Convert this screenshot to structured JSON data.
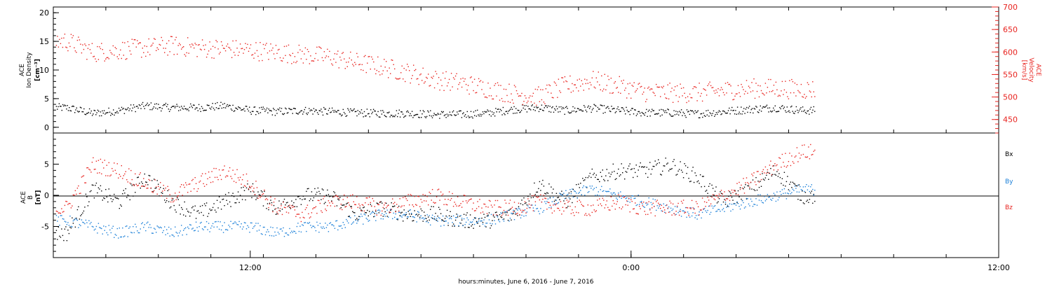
{
  "colors": {
    "axis": "#000000",
    "red": "#e8231f",
    "blue": "#1a7fd8",
    "black": "#000000"
  },
  "chart_data": [
    {
      "type": "scatter",
      "panel": "top",
      "ylabel_left": [
        "ACE",
        "Ion Density",
        "[cm⁻³]"
      ],
      "ylabel_right": [
        "ACE",
        "Velocity",
        "[km/s]"
      ],
      "xlim_hours": [
        2,
        38
      ],
      "ylim_left": [
        -1,
        21
      ],
      "ylim_right": [
        420,
        700
      ],
      "yticks_left": [
        0,
        5,
        10,
        15,
        20
      ],
      "yticks_right": [
        450,
        500,
        550,
        600,
        650,
        700
      ],
      "grid": false,
      "series": [
        {
          "color": "black",
          "axis": "left",
          "x": [
            2.5,
            3.5,
            4.5,
            5.5,
            6.5,
            7.5,
            8.5,
            9.5,
            10.5,
            11.5,
            12.5,
            13.5,
            14.5,
            15.5,
            16.5,
            17.5,
            18.5,
            19.5,
            20.5,
            21.5,
            22.5,
            23.5,
            24.5,
            25.5,
            26.5,
            27.5,
            28.5,
            29.5,
            30.5
          ],
          "y": [
            3.5,
            2.5,
            3.0,
            3.8,
            3.5,
            3.5,
            3.8,
            3.0,
            2.8,
            3.0,
            2.8,
            2.6,
            2.5,
            2.5,
            2.3,
            2.3,
            2.5,
            3.2,
            3.5,
            3.0,
            3.4,
            3.0,
            2.6,
            2.6,
            2.4,
            2.8,
            3.2,
            3.5,
            3.0
          ]
        },
        {
          "color": "red",
          "axis": "right",
          "x": [
            2.5,
            3.5,
            4.5,
            5.5,
            6.5,
            7.5,
            8.5,
            9.5,
            10.5,
            11.5,
            12.5,
            13.5,
            14.5,
            15.5,
            16.5,
            17.5,
            18.5,
            19.5,
            20.5,
            21.5,
            22.5,
            23.5,
            24.5,
            25.5,
            26.5,
            27.5,
            28.5,
            29.5,
            30.5
          ],
          "y": [
            625,
            600,
            605,
            610,
            615,
            610,
            608,
            605,
            600,
            595,
            590,
            578,
            568,
            555,
            540,
            532,
            520,
            508,
            502,
            526,
            538,
            525,
            512,
            510,
            510,
            515,
            520,
            520,
            518
          ]
        }
      ]
    },
    {
      "type": "scatter",
      "panel": "bottom",
      "ylabel_left": [
        "ACE",
        "B",
        "[nT]"
      ],
      "xlim_hours": [
        2,
        38
      ],
      "ylim": [
        -10,
        10
      ],
      "yticks": [
        -5,
        0,
        5
      ],
      "zero_line": true,
      "xticks_labels": [
        "12:00",
        "0:00",
        "12:00"
      ],
      "xticks_hours": [
        9.5,
        24,
        38
      ],
      "xlabel": "hours:minutes, June  6, 2016 - June  7, 2016",
      "legend": [
        "Bx",
        "By",
        "Bz"
      ],
      "legend_placement": "right",
      "series": [
        {
          "name": "Bx",
          "color": "black",
          "x": [
            2.5,
            3.5,
            4.5,
            5.5,
            6.5,
            7.5,
            8.5,
            9.5,
            10.5,
            11.5,
            12.5,
            13.5,
            14.5,
            15.5,
            16.5,
            17.5,
            18.5,
            19.5,
            20.5,
            21.5,
            22.5,
            23.5,
            24.5,
            25.5,
            26.5,
            27.5,
            28.5,
            29.5,
            30.5
          ],
          "y": [
            -6,
            1,
            -1,
            3,
            -1,
            -3,
            -1,
            1,
            -2,
            0,
            0,
            -3,
            -2,
            -3,
            -3,
            -4,
            -4,
            -3,
            2,
            -1,
            3,
            4,
            4,
            5,
            3,
            -1,
            1,
            4,
            0
          ]
        },
        {
          "name": "By",
          "color": "blue",
          "x": [
            2.5,
            3.5,
            4.5,
            5.5,
            6.5,
            7.5,
            8.5,
            9.5,
            10.5,
            11.5,
            12.5,
            13.5,
            14.5,
            15.5,
            16.5,
            17.5,
            18.5,
            19.5,
            20.5,
            21.5,
            22.5,
            23.5,
            24.5,
            25.5,
            26.5,
            27.5,
            28.5,
            29.5,
            30.5
          ],
          "y": [
            -4,
            -5,
            -6,
            -5,
            -6,
            -5,
            -5,
            -5,
            -6,
            -5,
            -5,
            -4,
            -3,
            -3,
            -4,
            -4,
            -4,
            -3,
            -2,
            0,
            1,
            0,
            -1,
            -2,
            -3,
            -2,
            -1,
            0,
            1
          ]
        },
        {
          "name": "Bz",
          "color": "red",
          "x": [
            2.5,
            3.5,
            4.5,
            5.5,
            6.5,
            7.5,
            8.5,
            9.5,
            10.5,
            11.5,
            12.5,
            13.5,
            14.5,
            15.5,
            16.5,
            17.5,
            18.5,
            19.5,
            20.5,
            21.5,
            22.5,
            23.5,
            24.5,
            25.5,
            26.5,
            27.5,
            28.5,
            29.5,
            30.5
          ],
          "y": [
            -2,
            5,
            4,
            2,
            0,
            2,
            4,
            2,
            -2,
            -3,
            -1,
            -1,
            -2,
            -1,
            0,
            -1,
            -2,
            -2,
            -1,
            -2,
            -2,
            -1,
            -2,
            -2,
            -2,
            0,
            2,
            5,
            7
          ]
        }
      ]
    }
  ]
}
